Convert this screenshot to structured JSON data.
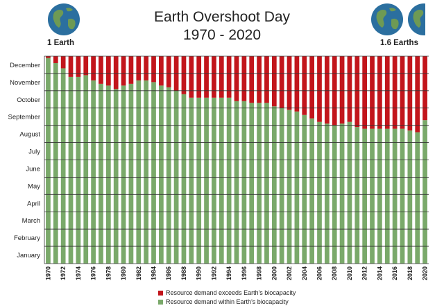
{
  "title": {
    "line1": "Earth Overshoot Day",
    "line2": "1970 - 2020"
  },
  "left_globe_label": "1 Earth",
  "right_globe_label": "1.6 Earths",
  "colors": {
    "exceeds": "#c2151b",
    "within": "#7aa96a",
    "ocean": "#2b6f9f",
    "land": "#6e9a54",
    "grid": "#333333"
  },
  "legend": {
    "exceeds_label": "Resource demand exceeds Earth's biocapacity",
    "within_label": "Resource demand within Earth's biocapacity"
  },
  "chart_data": {
    "type": "bar",
    "title": "Earth Overshoot Day 1970 - 2020",
    "xlabel": "",
    "ylabel": "",
    "y_unit": "months from start of year (0 = January start, 12 = December end)",
    "ylim": [
      0,
      12
    ],
    "y_tick_labels": [
      "January",
      "February",
      "March",
      "April",
      "May",
      "June",
      "July",
      "August",
      "September",
      "October",
      "November",
      "December"
    ],
    "x_tick_labels": [
      "1970",
      "1972",
      "1974",
      "1976",
      "1978",
      "1980",
      "1982",
      "1984",
      "1986",
      "1988",
      "1990",
      "1992",
      "1994",
      "1996",
      "1998",
      "2000",
      "2002",
      "2004",
      "2006",
      "2008",
      "2010",
      "2012",
      "2014",
      "2016",
      "2018",
      "2020"
    ],
    "grid": true,
    "legend_position": "bottom",
    "categories": [
      "1970",
      "1971",
      "1972",
      "1973",
      "1974",
      "1975",
      "1976",
      "1977",
      "1978",
      "1979",
      "1980",
      "1981",
      "1982",
      "1983",
      "1984",
      "1985",
      "1986",
      "1987",
      "1988",
      "1989",
      "1990",
      "1991",
      "1992",
      "1993",
      "1994",
      "1995",
      "1996",
      "1997",
      "1998",
      "1999",
      "2000",
      "2001",
      "2002",
      "2003",
      "2004",
      "2005",
      "2006",
      "2007",
      "2008",
      "2009",
      "2010",
      "2011",
      "2012",
      "2013",
      "2014",
      "2015",
      "2016",
      "2017",
      "2018",
      "2019",
      "2020"
    ],
    "series": [
      {
        "name": "Resource demand within Earth's biocapacity",
        "values": [
          11.9,
          11.6,
          11.3,
          10.8,
          10.8,
          10.9,
          10.6,
          10.4,
          10.3,
          10.1,
          10.3,
          10.4,
          10.6,
          10.6,
          10.5,
          10.3,
          10.2,
          10.0,
          9.8,
          9.6,
          9.6,
          9.6,
          9.6,
          9.6,
          9.6,
          9.4,
          9.4,
          9.3,
          9.3,
          9.3,
          9.1,
          9.0,
          8.9,
          8.8,
          8.6,
          8.4,
          8.2,
          8.1,
          8.0,
          8.1,
          8.2,
          7.9,
          7.8,
          7.8,
          7.8,
          7.8,
          7.8,
          7.8,
          7.7,
          7.6,
          8.3
        ]
      },
      {
        "name": "Resource demand exceeds Earth's biocapacity",
        "values": [
          0.1,
          0.4,
          0.7,
          1.2,
          1.2,
          1.1,
          1.4,
          1.6,
          1.7,
          1.9,
          1.7,
          1.6,
          1.4,
          1.4,
          1.5,
          1.7,
          1.8,
          2.0,
          2.2,
          2.4,
          2.4,
          2.4,
          2.4,
          2.4,
          2.4,
          2.6,
          2.6,
          2.7,
          2.7,
          2.7,
          2.9,
          3.0,
          3.1,
          3.2,
          3.4,
          3.6,
          3.8,
          3.9,
          4.0,
          3.9,
          3.8,
          4.1,
          4.2,
          4.2,
          4.2,
          4.2,
          4.2,
          4.2,
          4.3,
          4.4,
          3.7
        ]
      }
    ]
  }
}
